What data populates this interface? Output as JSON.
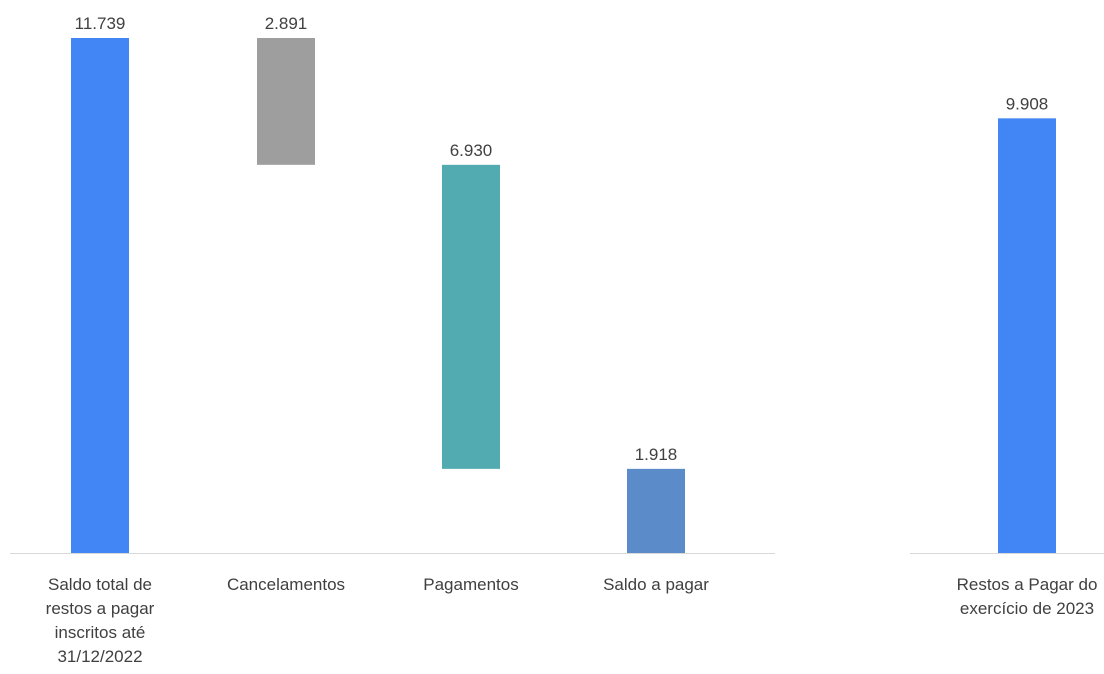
{
  "chart_data": [
    {
      "type": "bar",
      "subtype": "waterfall",
      "categories": [
        [
          "Saldo total de",
          "restos a pagar",
          "inscritos até",
          "31/12/2022"
        ],
        [
          "Cancelamentos"
        ],
        [
          "Pagamentos"
        ],
        [
          "Saldo a pagar"
        ]
      ],
      "bars": [
        {
          "start": 0,
          "end": 11739,
          "label": "11.739",
          "color": "#4285f4"
        },
        {
          "start": 8848,
          "end": 11739,
          "label": "2.891",
          "color": "#9e9e9e"
        },
        {
          "start": 1918,
          "end": 8848,
          "label": "6.930",
          "color": "#52abb0"
        },
        {
          "start": 0,
          "end": 1918,
          "label": "1.918",
          "color": "#5b8bc9"
        }
      ],
      "ylim": [
        0,
        11739
      ],
      "grid": false,
      "legend": "none"
    },
    {
      "type": "bar",
      "categories": [
        [
          "Restos a Pagar do",
          "exercício de 2023"
        ]
      ],
      "bars": [
        {
          "start": 0,
          "end": 9908,
          "label": "9.908",
          "color": "#4285f4"
        }
      ],
      "ylim": [
        0,
        11739
      ],
      "grid": false,
      "legend": "none"
    }
  ]
}
